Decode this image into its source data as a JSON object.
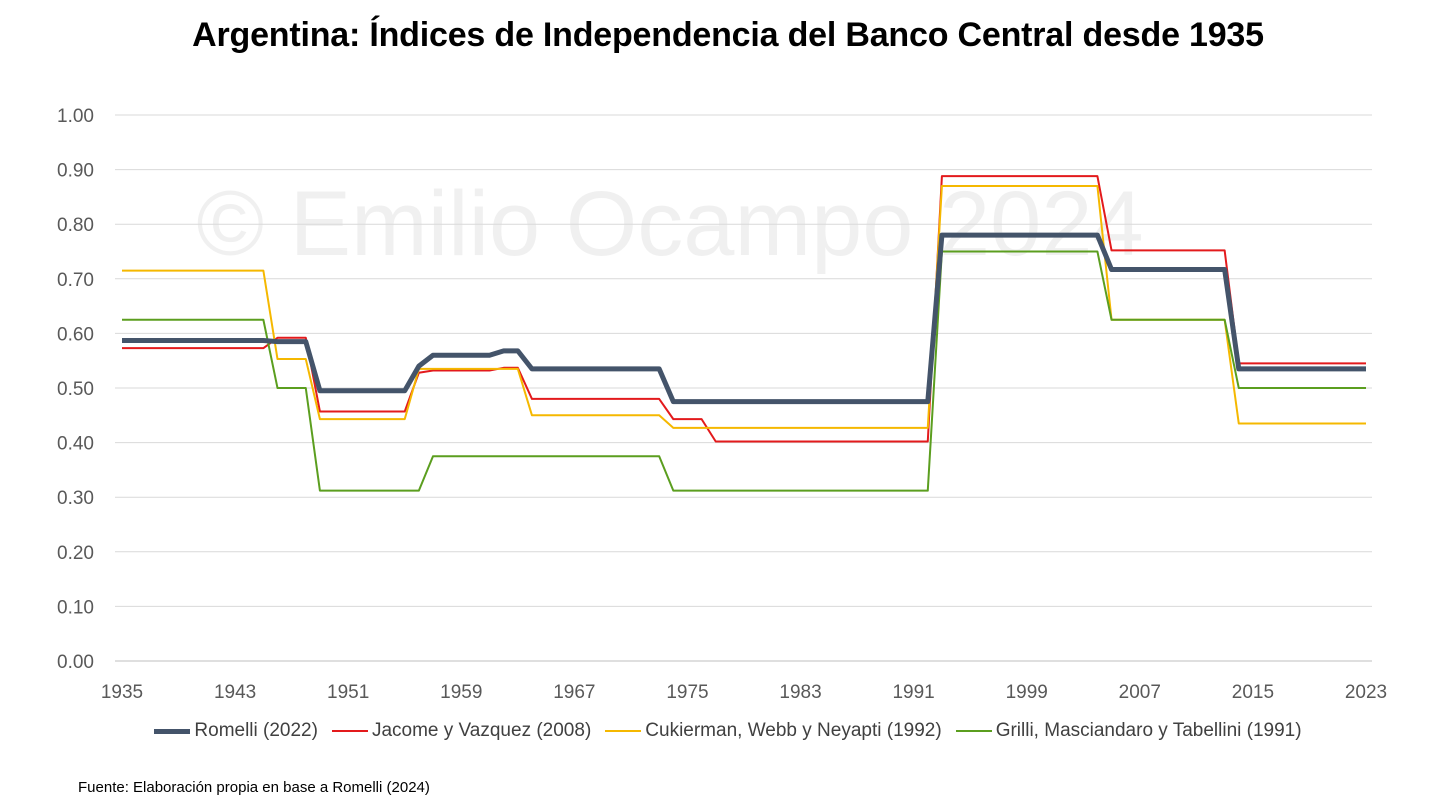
{
  "title": "Argentina: Índices de Independencia del Banco Central desde 1935",
  "source": "Fuente: Elaboración propia en base a Romelli (2024)",
  "watermark": "© Emilio Ocampo 2024",
  "chart_data": {
    "type": "line",
    "title": "Argentina: Índices de Independencia del Banco Central desde 1935",
    "xlabel": "",
    "ylabel": "",
    "xlim": [
      1935,
      2023
    ],
    "ylim": [
      0,
      1
    ],
    "yticks": [
      "0.00",
      "0.10",
      "0.20",
      "0.30",
      "0.40",
      "0.50",
      "0.60",
      "0.70",
      "0.80",
      "0.90",
      "1.00"
    ],
    "xticks": [
      "1935",
      "1943",
      "1951",
      "1959",
      "1967",
      "1975",
      "1983",
      "1991",
      "1999",
      "2007",
      "2015",
      "2023"
    ],
    "grid": true,
    "legend_position": "bottom",
    "series": [
      {
        "name": "Romelli (2022)",
        "color": "#44546a",
        "width": 5,
        "points": [
          [
            1935,
            0.587
          ],
          [
            1945,
            0.587
          ],
          [
            1946,
            0.585
          ],
          [
            1948,
            0.585
          ],
          [
            1949,
            0.495
          ],
          [
            1955,
            0.495
          ],
          [
            1956,
            0.54
          ],
          [
            1957,
            0.56
          ],
          [
            1961,
            0.56
          ],
          [
            1962,
            0.568
          ],
          [
            1963,
            0.568
          ],
          [
            1964,
            0.535
          ],
          [
            1973,
            0.535
          ],
          [
            1974,
            0.475
          ],
          [
            1992,
            0.475
          ],
          [
            1993,
            0.78
          ],
          [
            2004,
            0.78
          ],
          [
            2005,
            0.717
          ],
          [
            2013,
            0.717
          ],
          [
            2014,
            0.535
          ],
          [
            2023,
            0.535
          ]
        ]
      },
      {
        "name": "Jacome y Vazquez (2008)",
        "color": "#e31a1c",
        "width": 2,
        "points": [
          [
            1935,
            0.573
          ],
          [
            1945,
            0.573
          ],
          [
            1946,
            0.592
          ],
          [
            1948,
            0.592
          ],
          [
            1949,
            0.457
          ],
          [
            1955,
            0.457
          ],
          [
            1956,
            0.528
          ],
          [
            1957,
            0.532
          ],
          [
            1961,
            0.532
          ],
          [
            1962,
            0.537
          ],
          [
            1963,
            0.537
          ],
          [
            1964,
            0.48
          ],
          [
            1973,
            0.48
          ],
          [
            1974,
            0.443
          ],
          [
            1976,
            0.443
          ],
          [
            1977,
            0.402
          ],
          [
            1992,
            0.402
          ],
          [
            1993,
            0.888
          ],
          [
            2004,
            0.888
          ],
          [
            2005,
            0.752
          ],
          [
            2013,
            0.752
          ],
          [
            2014,
            0.545
          ],
          [
            2023,
            0.545
          ]
        ]
      },
      {
        "name": "Cukierman, Webb y Neyapti (1992)",
        "color": "#f5b800",
        "width": 2,
        "points": [
          [
            1935,
            0.715
          ],
          [
            1945,
            0.715
          ],
          [
            1946,
            0.553
          ],
          [
            1948,
            0.553
          ],
          [
            1949,
            0.443
          ],
          [
            1955,
            0.443
          ],
          [
            1956,
            0.535
          ],
          [
            1963,
            0.535
          ],
          [
            1964,
            0.45
          ],
          [
            1973,
            0.45
          ],
          [
            1974,
            0.427
          ],
          [
            1992,
            0.427
          ],
          [
            1993,
            0.87
          ],
          [
            2004,
            0.87
          ],
          [
            2005,
            0.625
          ],
          [
            2013,
            0.625
          ],
          [
            2014,
            0.435
          ],
          [
            2023,
            0.435
          ]
        ]
      },
      {
        "name": "Grilli, Masciandaro y Tabellini (1991)",
        "color": "#5b9e1f",
        "width": 2,
        "points": [
          [
            1935,
            0.625
          ],
          [
            1945,
            0.625
          ],
          [
            1946,
            0.5
          ],
          [
            1948,
            0.5
          ],
          [
            1949,
            0.312
          ],
          [
            1956,
            0.312
          ],
          [
            1957,
            0.375
          ],
          [
            1973,
            0.375
          ],
          [
            1974,
            0.312
          ],
          [
            1992,
            0.312
          ],
          [
            1993,
            0.75
          ],
          [
            2004,
            0.75
          ],
          [
            2005,
            0.625
          ],
          [
            2013,
            0.625
          ],
          [
            2014,
            0.5
          ],
          [
            2023,
            0.5
          ]
        ]
      }
    ]
  }
}
